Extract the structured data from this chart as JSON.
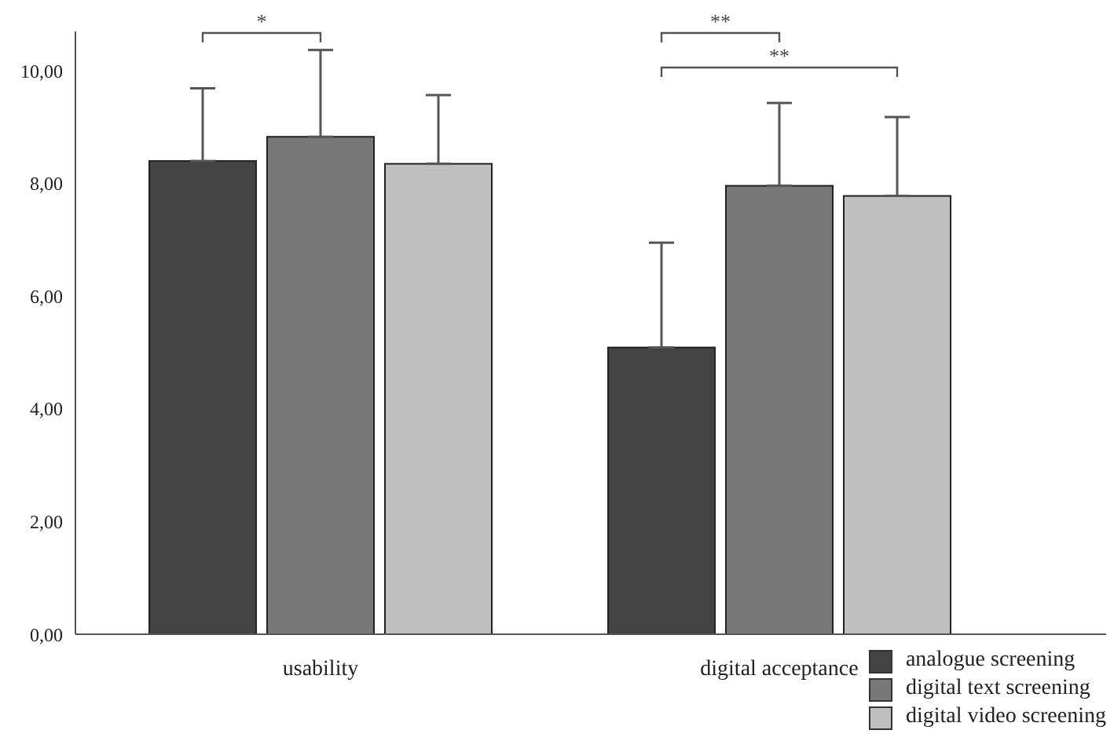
{
  "chart_data": {
    "type": "bar",
    "categories": [
      "usability",
      "digital acceptance"
    ],
    "series": [
      {
        "name": "analogue screening",
        "color": "#434343",
        "values": [
          8.4,
          5.09
        ],
        "errors": [
          [
            8.4,
            9.69
          ],
          [
            5.09,
            6.95
          ]
        ]
      },
      {
        "name": "digital text screening",
        "color": "#787878",
        "values": [
          8.83,
          7.96
        ],
        "errors": [
          [
            8.83,
            10.37
          ],
          [
            7.96,
            9.43
          ]
        ]
      },
      {
        "name": "digital video screening",
        "color": "#bfbfbf",
        "values": [
          8.35,
          7.78
        ],
        "errors": [
          [
            8.35,
            9.57
          ],
          [
            7.78,
            9.18
          ]
        ]
      }
    ],
    "ylim": [
      0,
      10.7
    ],
    "yticks": [
      {
        "value": 0,
        "label": "0,00"
      },
      {
        "value": 2,
        "label": "2,00"
      },
      {
        "value": 4,
        "label": "4,00"
      },
      {
        "value": 6,
        "label": "6,00"
      },
      {
        "value": 8,
        "label": "8,00"
      },
      {
        "value": 10,
        "label": "10,00"
      }
    ],
    "grid": false,
    "legend": "bottom right",
    "annotations": [
      "*",
      "**",
      "**"
    ]
  }
}
